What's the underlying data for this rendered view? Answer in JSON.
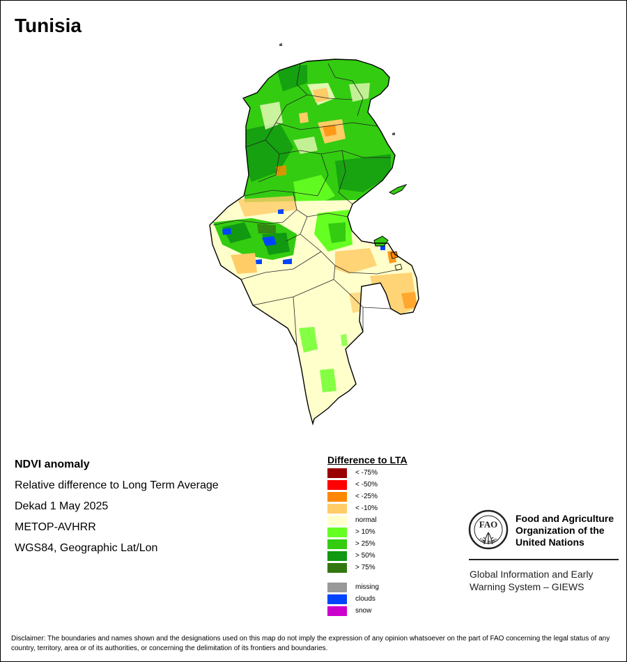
{
  "title": "Tunisia",
  "info": {
    "product": "NDVI anomaly",
    "description": "Relative difference to Long Term Average",
    "period": "Dekad 1 May 2025",
    "sensor": "METOP-AVHRR",
    "projection": "WGS84, Geographic Lat/Lon"
  },
  "legend": {
    "title": "Difference to LTA",
    "items": [
      {
        "label": "< -75%",
        "color": "#990000"
      },
      {
        "label": "< -50%",
        "color": "#ff0000"
      },
      {
        "label": "< -25%",
        "color": "#ff8800"
      },
      {
        "label": "< -10%",
        "color": "#ffcc66"
      },
      {
        "label": "normal",
        "color": "#ffffcc"
      },
      {
        "label": "> 10%",
        "color": "#66ff22"
      },
      {
        "label": "> 25%",
        "color": "#33cc11"
      },
      {
        "label": "> 50%",
        "color": "#119911"
      },
      {
        "label": "> 75%",
        "color": "#337711"
      }
    ],
    "extra": [
      {
        "label": "missing",
        "color": "#999999"
      },
      {
        "label": "clouds",
        "color": "#0044ff"
      },
      {
        "label": "snow",
        "color": "#cc00cc"
      }
    ]
  },
  "fao": {
    "logo_text": "FAO",
    "logo_motto": "FIAT PANIS",
    "org_name": "Food and Agriculture Organization of the United Nations",
    "system_name": "Global Information and Early Warning System – GIEWS"
  },
  "disclaimer": "Disclaimer: The boundaries and names shown and the designations used on this map do not imply the expression of any opinion whatsoever on the part of FAO concerning the legal status of any country, territory, area or of its authorities, or concerning the delimitation of its frontiers and boundaries."
}
